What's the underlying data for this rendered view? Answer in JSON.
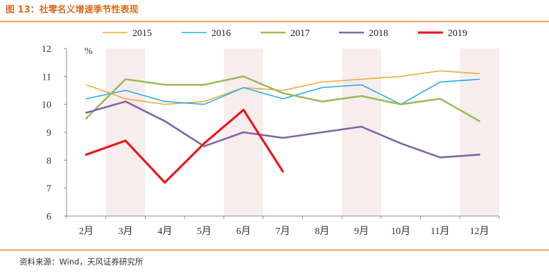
{
  "figure_title": "图 13：社零名义增速季节性表现",
  "source_note": "资料来源：Wind，天风证券研究所",
  "chart_data": {
    "type": "line",
    "unit_label": "%",
    "categories": [
      "2月",
      "3月",
      "4月",
      "5月",
      "6月",
      "7月",
      "8月",
      "9月",
      "10月",
      "11月",
      "12月"
    ],
    "ylim": [
      6,
      12
    ],
    "yticks": [
      "6",
      "7",
      "8",
      "9",
      "10",
      "11",
      "12"
    ],
    "highlighted_months": [
      "3月",
      "6月",
      "9月",
      "12月"
    ],
    "highlight_color": "#f8eded",
    "legend_position": "top",
    "series": [
      {
        "name": "2015",
        "color": "#f4a93b",
        "width": 1.6,
        "values": [
          10.7,
          10.2,
          10.0,
          10.1,
          10.6,
          10.5,
          10.8,
          10.9,
          11.0,
          11.2,
          11.1
        ]
      },
      {
        "name": "2016",
        "color": "#21aee6",
        "width": 1.6,
        "values": [
          10.2,
          10.5,
          10.1,
          10.0,
          10.6,
          10.2,
          10.6,
          10.7,
          10.0,
          10.8,
          10.9
        ]
      },
      {
        "name": "2017",
        "color": "#9bbb59",
        "width": 2.6,
        "values": [
          9.5,
          10.9,
          10.7,
          10.7,
          11.0,
          10.4,
          10.1,
          10.3,
          10.0,
          10.2,
          9.4
        ]
      },
      {
        "name": "2018",
        "color": "#8064a2",
        "width": 2.6,
        "values": [
          9.7,
          10.1,
          9.4,
          8.5,
          9.0,
          8.8,
          9.0,
          9.2,
          8.6,
          8.1,
          8.2
        ]
      },
      {
        "name": "2019",
        "color": "#e8171d",
        "width": 3.2,
        "values": [
          8.2,
          8.7,
          7.2,
          8.6,
          9.8,
          7.6,
          null,
          null,
          null,
          null,
          null
        ]
      }
    ]
  }
}
